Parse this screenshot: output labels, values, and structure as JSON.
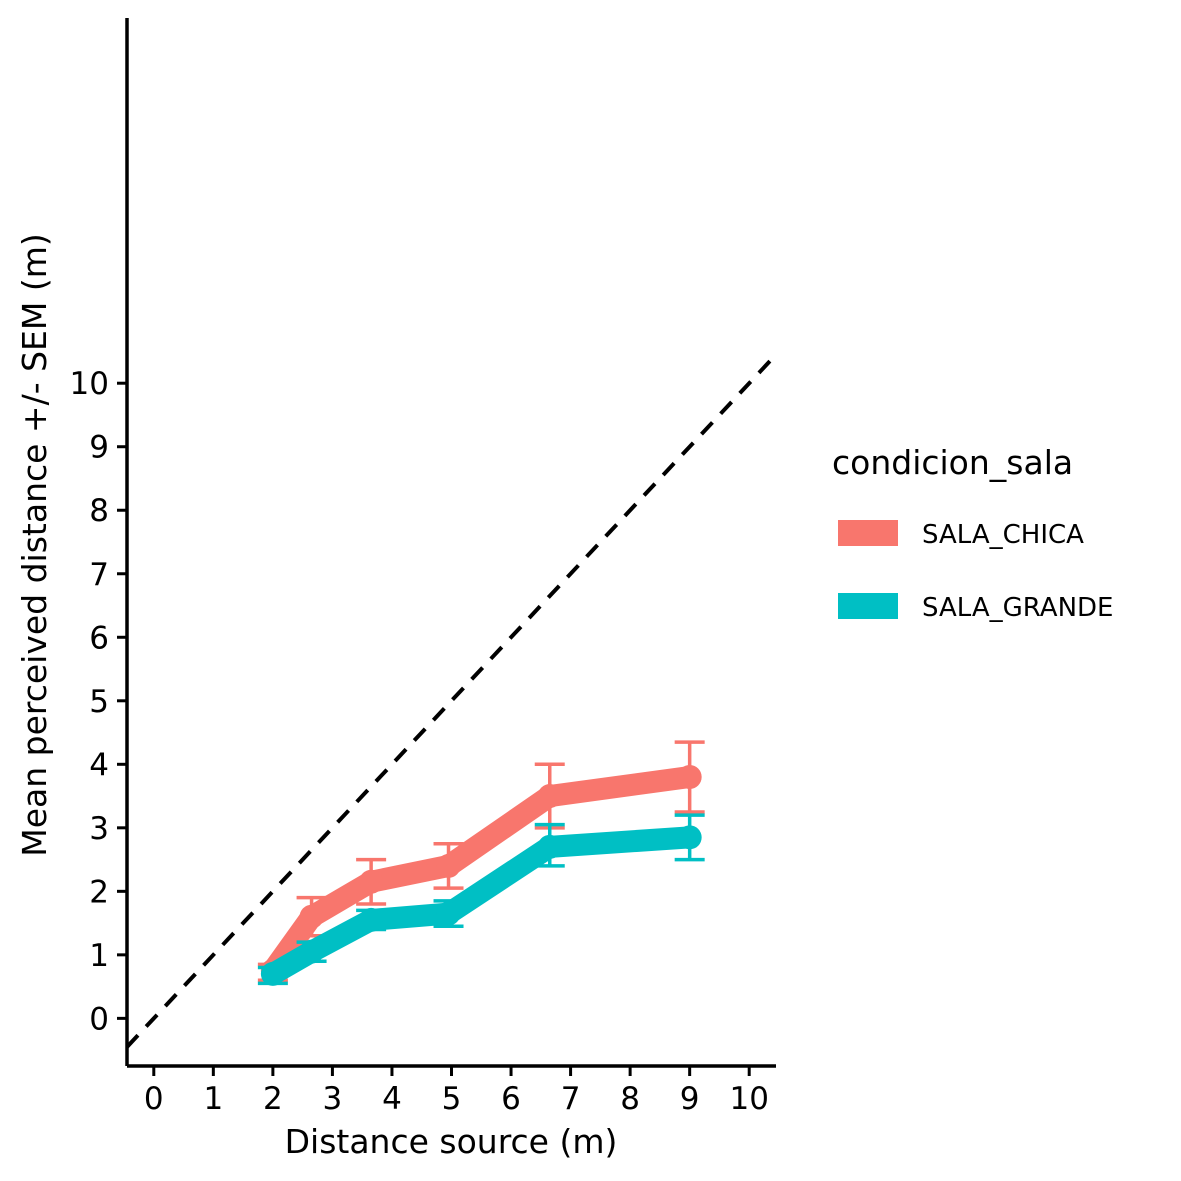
{
  "chart_data": {
    "type": "line",
    "title": "",
    "xlabel": "Distance source (m)",
    "ylabel": "Mean perceived distance +/- SEM (m)",
    "xlim": [
      -0.45,
      10.45
    ],
    "ylim": [
      -0.75,
      15.75
    ],
    "x_ticks": [
      "0",
      "1",
      "2",
      "3",
      "4",
      "5",
      "6",
      "7",
      "8",
      "9",
      "10"
    ],
    "y_ticks": [
      "0",
      "1",
      "2",
      "3",
      "4",
      "5",
      "6",
      "7",
      "8",
      "9",
      "10"
    ],
    "grid": false,
    "reference_line": {
      "style": "dashed",
      "color": "#000000",
      "x": [
        -0.45,
        10.45
      ],
      "y": [
        -0.45,
        10.45
      ]
    },
    "legend": {
      "title": "condicion_sala",
      "position": "right"
    },
    "series": [
      {
        "name": "SALA_CHICA",
        "color": "#F8766D",
        "x": [
          2.0,
          2.65,
          3.65,
          4.95,
          6.65,
          9.0
        ],
        "y": [
          0.75,
          1.6,
          2.15,
          2.4,
          3.5,
          3.8
        ],
        "ymin": [
          0.6,
          1.3,
          1.8,
          2.05,
          3.0,
          3.25
        ],
        "ymax": [
          0.85,
          1.9,
          2.5,
          2.75,
          4.0,
          4.35
        ]
      },
      {
        "name": "SALA_GRANDE",
        "color": "#00BFC4",
        "x": [
          2.0,
          2.65,
          3.65,
          4.95,
          6.65,
          9.0
        ],
        "y": [
          0.7,
          1.05,
          1.55,
          1.65,
          2.7,
          2.85
        ],
        "ymin": [
          0.55,
          0.9,
          1.4,
          1.45,
          2.4,
          2.5
        ],
        "ymax": [
          0.8,
          1.2,
          1.7,
          1.85,
          3.05,
          3.2
        ]
      }
    ]
  }
}
